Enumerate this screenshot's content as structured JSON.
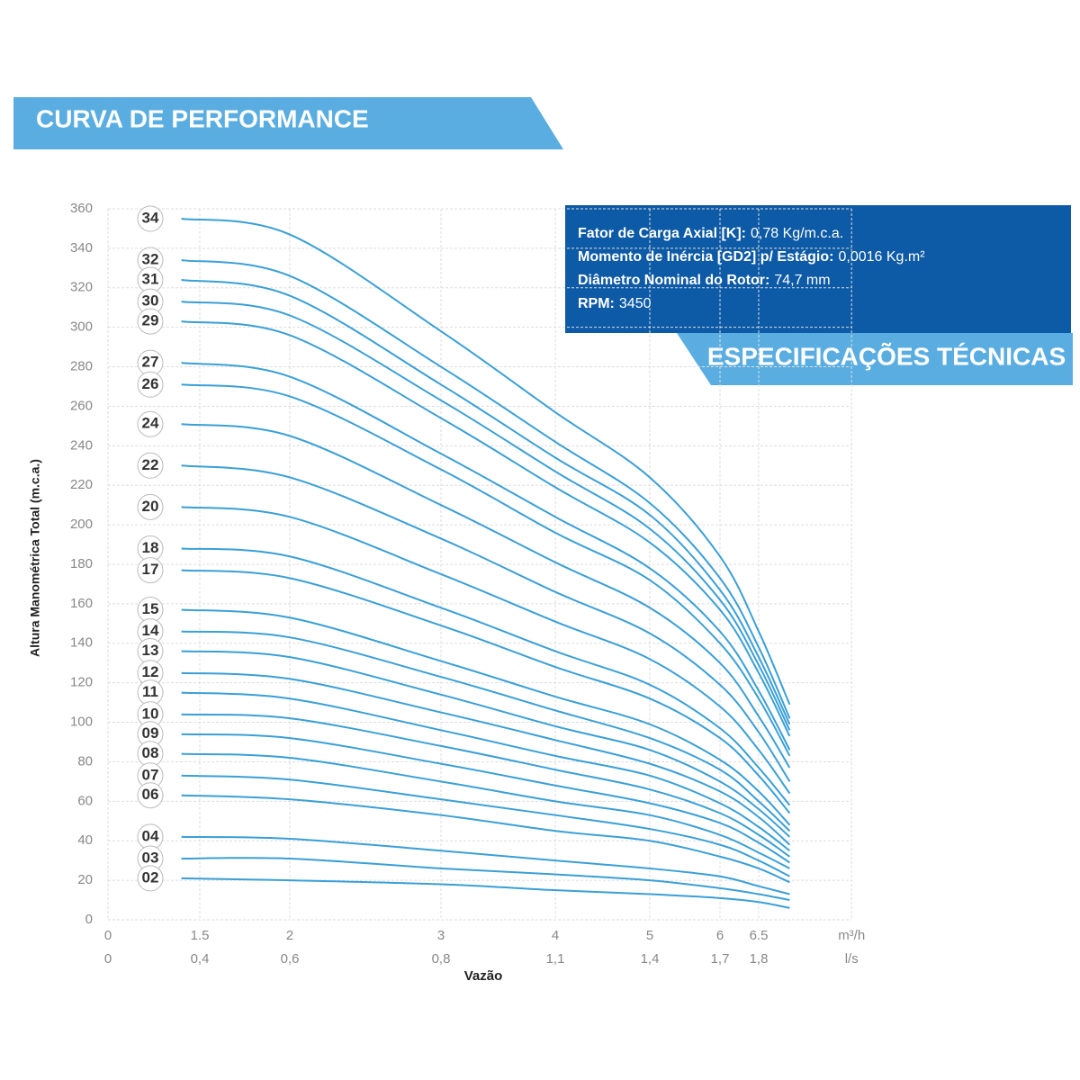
{
  "header": {
    "title": "CURVA DE PERFORMANCE"
  },
  "specs": {
    "title": "ESPECIFICAÇÕES TÉCNICAS",
    "items": [
      {
        "label": "Fator de Carga Axial [K]:",
        "value": "0,78 Kg/m.c.a."
      },
      {
        "label": "Momento de Inércia [GD2] p/ Estágio:",
        "value": "0,0016 Kg.m²"
      },
      {
        "label": "Diâmetro Nominal do Rotor:",
        "value": "74,7 mm"
      },
      {
        "label": "RPM:",
        "value": "3450"
      }
    ]
  },
  "chart_data": {
    "type": "line",
    "y_label": "Altura Manométrica Total (m.c.a.)",
    "x_label": "Vazão",
    "x_unit": "m³/h",
    "x2_unit": "l/s",
    "xlim": [
      0,
      7.7
    ],
    "xticks": [
      0,
      1.5,
      2,
      3,
      4,
      5,
      6,
      6.5
    ],
    "x2ticks": [
      0,
      {
        "value": 0.4,
        "label": "0,4"
      },
      {
        "value": 0.6,
        "label": "0,6"
      },
      {
        "value": 0.8,
        "label": "0,8"
      },
      {
        "value": 1.1,
        "label": "1,1"
      },
      {
        "value": 1.4,
        "label": "1,4"
      },
      {
        "value": 1.7,
        "label": "1,7"
      },
      {
        "value": 1.8,
        "label": "1,8"
      }
    ],
    "ylim": [
      0,
      360
    ],
    "yticks": [
      0,
      20,
      40,
      60,
      80,
      100,
      120,
      140,
      160,
      180,
      200,
      220,
      240,
      260,
      280,
      300,
      320,
      340,
      360
    ],
    "grid": true,
    "color": "#3a9fd6",
    "x": [
      1.2,
      2,
      3,
      4,
      5,
      6,
      6.5,
      6.9
    ],
    "series": [
      {
        "name": "34",
        "values": [
          355,
          347,
          298,
          257,
          224,
          184,
          146,
          109
        ]
      },
      {
        "name": "32",
        "values": [
          334,
          326,
          280,
          242,
          211,
          173,
          138,
          102
        ]
      },
      {
        "name": "31",
        "values": [
          324,
          316,
          271,
          234,
          205,
          167,
          133,
          99
        ]
      },
      {
        "name": "30",
        "values": [
          313,
          306,
          263,
          227,
          198,
          162,
          129,
          96
        ]
      },
      {
        "name": "29",
        "values": [
          303,
          296,
          254,
          219,
          191,
          157,
          125,
          93
        ]
      },
      {
        "name": "27",
        "values": [
          282,
          275,
          236,
          204,
          178,
          146,
          116,
          86
        ]
      },
      {
        "name": "26",
        "values": [
          271,
          265,
          228,
          196,
          172,
          140,
          112,
          83
        ]
      },
      {
        "name": "24",
        "values": [
          251,
          245,
          210,
          181,
          158,
          130,
          103,
          77
        ]
      },
      {
        "name": "22",
        "values": [
          230,
          224,
          193,
          166,
          145,
          119,
          95,
          70
        ]
      },
      {
        "name": "20",
        "values": [
          209,
          204,
          175,
          151,
          132,
          108,
          86,
          64
        ]
      },
      {
        "name": "18",
        "values": [
          188,
          184,
          158,
          136,
          119,
          97,
          77,
          58
        ]
      },
      {
        "name": "17",
        "values": [
          177,
          173,
          149,
          128,
          112,
          92,
          73,
          54
        ]
      },
      {
        "name": "15",
        "values": [
          157,
          153,
          131,
          113,
          99,
          81,
          65,
          48
        ]
      },
      {
        "name": "14",
        "values": [
          146,
          143,
          123,
          106,
          92,
          76,
          60,
          45
        ]
      },
      {
        "name": "13",
        "values": [
          136,
          133,
          114,
          98,
          86,
          70,
          56,
          42
        ]
      },
      {
        "name": "12",
        "values": [
          125,
          122,
          105,
          91,
          79,
          65,
          52,
          38
        ]
      },
      {
        "name": "11",
        "values": [
          115,
          112,
          96,
          83,
          73,
          59,
          47,
          35
        ]
      },
      {
        "name": "10",
        "values": [
          104,
          102,
          88,
          76,
          66,
          54,
          43,
          32
        ]
      },
      {
        "name": "09",
        "values": [
          94,
          92,
          79,
          68,
          59,
          49,
          39,
          29
        ]
      },
      {
        "name": "08",
        "values": [
          84,
          82,
          70,
          60,
          53,
          43,
          34,
          26
        ]
      },
      {
        "name": "07",
        "values": [
          73,
          71,
          61,
          53,
          46,
          38,
          30,
          22
        ]
      },
      {
        "name": "06",
        "values": [
          63,
          61,
          53,
          45,
          40,
          32,
          26,
          19
        ]
      },
      {
        "name": "04",
        "values": [
          42,
          41,
          35,
          30,
          26,
          22,
          17,
          13
        ]
      },
      {
        "name": "03",
        "values": [
          31,
          31,
          26,
          23,
          20,
          16,
          13,
          10
        ]
      },
      {
        "name": "02",
        "values": [
          21,
          20,
          18,
          15,
          13,
          11,
          9,
          6
        ]
      }
    ]
  }
}
